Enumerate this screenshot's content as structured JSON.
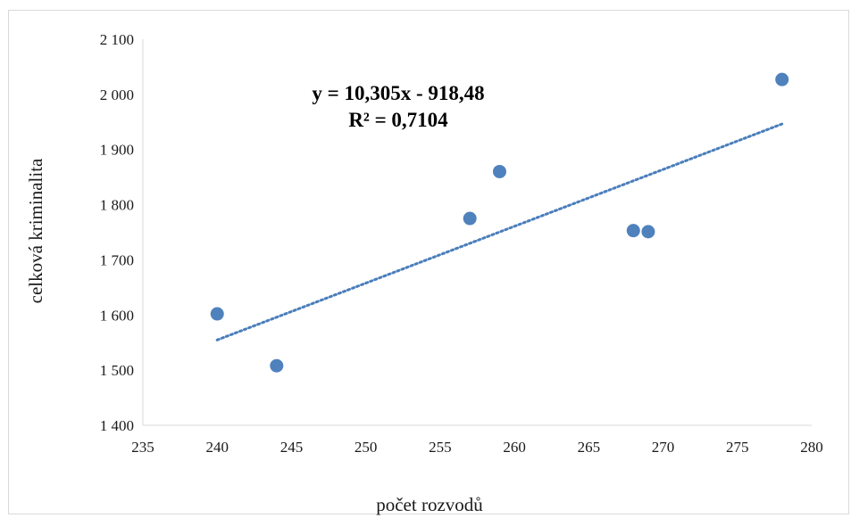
{
  "chart_data": {
    "type": "scatter",
    "xlabel": "počet rozvodů",
    "ylabel": "celková kriminalita",
    "xlim": [
      235,
      280
    ],
    "ylim": [
      1400,
      2100
    ],
    "x_ticks": [
      235,
      240,
      245,
      250,
      255,
      260,
      265,
      270,
      275,
      280
    ],
    "x_tick_labels": [
      "235",
      "240",
      "245",
      "250",
      "255",
      "260",
      "265",
      "270",
      "275",
      "280"
    ],
    "y_ticks": [
      1400,
      1500,
      1600,
      1700,
      1800,
      1900,
      2000,
      2100
    ],
    "y_tick_labels": [
      "1 400",
      "1 500",
      "1 600",
      "1 700",
      "1 800",
      "1 900",
      "2 000",
      "2 100"
    ],
    "series": [
      {
        "points": [
          {
            "x": 240,
            "y": 1602
          },
          {
            "x": 244,
            "y": 1508
          },
          {
            "x": 257,
            "y": 1775
          },
          {
            "x": 259,
            "y": 1860
          },
          {
            "x": 268,
            "y": 1753
          },
          {
            "x": 269,
            "y": 1751
          },
          {
            "x": 278,
            "y": 2027
          }
        ],
        "color": "#4f81bd"
      }
    ],
    "trendline": {
      "type": "linear",
      "slope": 10.305,
      "intercept": -918.48,
      "x_range": [
        240,
        278
      ],
      "style": "dotted",
      "color": "#4a7ebb"
    },
    "annotations": {
      "equation": "y = 10,305x - 918,48",
      "r_squared": "R² = 0,7104"
    },
    "grid": false,
    "legend": "none"
  }
}
